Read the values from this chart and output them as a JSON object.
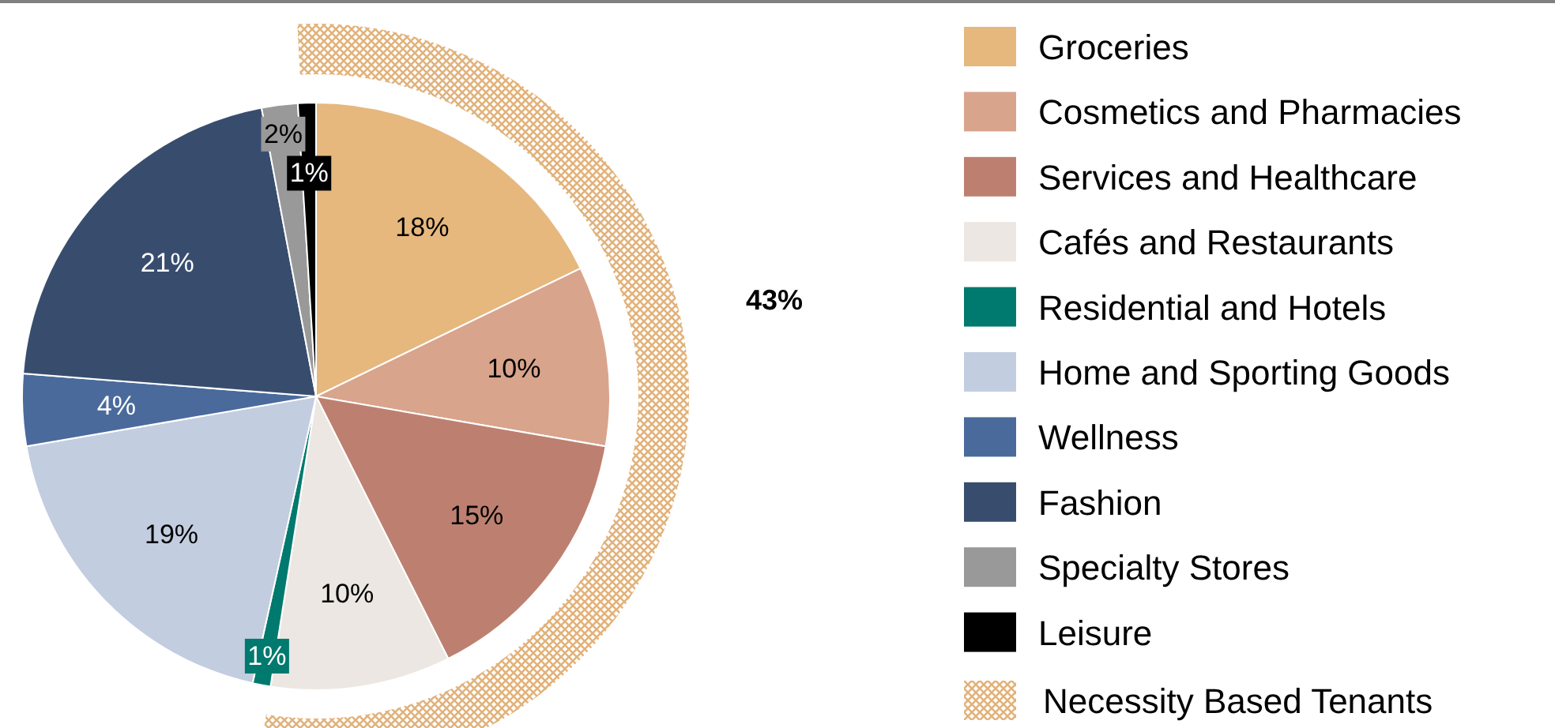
{
  "chart_data": {
    "type": "pie",
    "categories": [
      "Groceries",
      "Cosmetics and Pharmacies",
      "Services and Healthcare",
      "Cafés and Restaurants",
      "Residential and Hotels",
      "Home and Sporting Goods",
      "Wellness",
      "Fashion",
      "Specialty Stores",
      "Leisure"
    ],
    "values": [
      18,
      10,
      15,
      10,
      1,
      19,
      4,
      21,
      2,
      1
    ],
    "colors": [
      "#e6b87e",
      "#d9a48c",
      "#bd8070",
      "#ece7e2",
      "#007a6e",
      "#c3cde0",
      "#4a6a9c",
      "#384d6e",
      "#999999",
      "#000000"
    ],
    "value_labels": [
      "18%",
      "10%",
      "15%",
      "10%",
      "1%",
      "19%",
      "4%",
      "21%",
      "2%",
      "1%"
    ],
    "legend": "right",
    "annotations": [
      "43%",
      "Necessity Based Tenants"
    ]
  }
}
